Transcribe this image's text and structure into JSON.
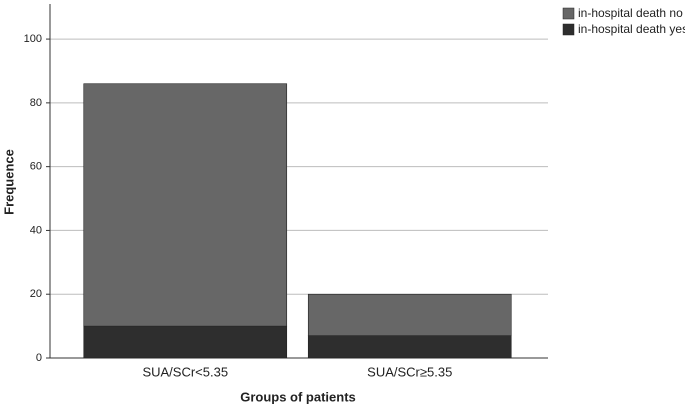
{
  "chart_data": {
    "type": "stacked-bar",
    "x_label": "Groups of patients",
    "y_label": "Frequence",
    "categories": [
      "SUA/SCr<5.35",
      "SUA/SCr≥5.35"
    ],
    "series": [
      {
        "name": "in-hospital death no",
        "color": "#676767",
        "values": [
          76,
          13
        ]
      },
      {
        "name": "in-hospital death yes",
        "color": "#2e2e2e",
        "values": [
          10,
          7
        ]
      }
    ],
    "ylim": [
      0,
      111
    ],
    "yticks": [
      0,
      20,
      40,
      60,
      80,
      100
    ],
    "grid": true,
    "legend": "top-right"
  }
}
